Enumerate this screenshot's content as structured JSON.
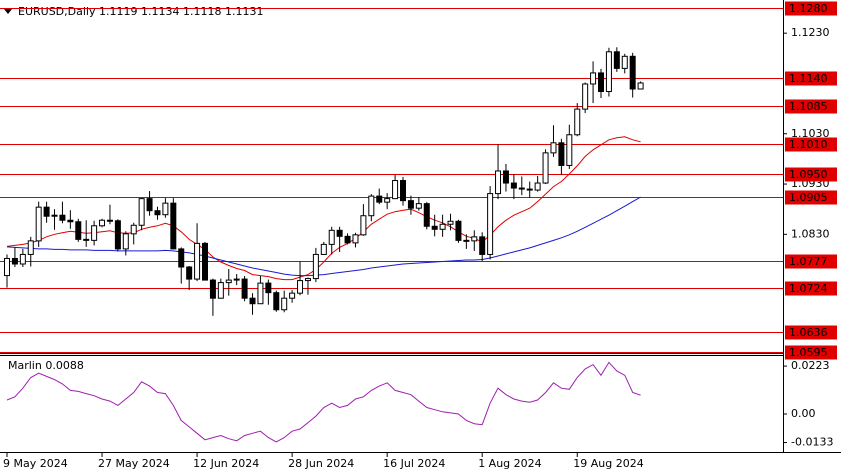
{
  "chart_data": [
    {
      "type": "candlestick",
      "title": "EURUSD,Daily",
      "categories": [
        "9 May 2024",
        null,
        null,
        null,
        null,
        null,
        null,
        null,
        null,
        null,
        null,
        null,
        "27 May 2024",
        null,
        null,
        null,
        null,
        null,
        null,
        null,
        null,
        null,
        null,
        null,
        "12 Jun 2024",
        null,
        null,
        null,
        null,
        null,
        null,
        null,
        null,
        null,
        null,
        null,
        "28 Jun 2024",
        null,
        null,
        null,
        null,
        null,
        null,
        null,
        null,
        null,
        null,
        null,
        "16 Jul 2024",
        null,
        null,
        null,
        null,
        null,
        null,
        null,
        null,
        null,
        null,
        null,
        "1 Aug 2024",
        null,
        null,
        null,
        null,
        null,
        null,
        null,
        null,
        null,
        null,
        null,
        "19 Aug 2024",
        null,
        null,
        null,
        null,
        null,
        null,
        null,
        null
      ],
      "open": [
        1.0748,
        1.0782,
        1.0771,
        1.079,
        1.0817,
        1.0884,
        1.0866,
        1.0868,
        1.0858,
        1.0855,
        1.082,
        1.0818,
        1.0847,
        1.0858,
        1.0857,
        1.0801,
        1.0831,
        1.0848,
        1.0901,
        1.0877,
        1.0869,
        1.0892,
        1.0801,
        1.0765,
        1.0741,
        1.0812,
        1.0739,
        1.0703,
        1.0734,
        1.0739,
        1.0741,
        1.0703,
        1.0692,
        1.0733,
        1.0714,
        1.068,
        1.0703,
        1.0713,
        1.0738,
        1.0742,
        1.079,
        1.081,
        1.0838,
        1.0826,
        1.0813,
        1.0829,
        1.0867,
        1.0906,
        1.0894,
        1.0901,
        1.0937,
        1.0897,
        1.0882,
        1.0891,
        1.0846,
        1.084,
        1.085,
        1.0856,
        1.0818,
        1.0817,
        1.0825,
        1.079,
        1.0911,
        1.0956,
        1.0932,
        1.0922,
        1.092,
        1.0918,
        1.0932,
        1.0992,
        1.1012,
        1.0967,
        1.1028,
        1.1079,
        1.1129,
        1.1151,
        1.1114,
        1.1193,
        1.116,
        1.1184,
        1.1119
      ],
      "high": [
        1.079,
        1.0804,
        1.0801,
        1.0825,
        1.0895,
        1.0895,
        1.088,
        1.0895,
        1.0878,
        1.0861,
        1.0858,
        1.0857,
        1.0861,
        1.0889,
        1.086,
        1.0836,
        1.0853,
        1.0902,
        1.0916,
        1.0885,
        1.0902,
        1.0902,
        1.0804,
        1.0767,
        1.0852,
        1.0815,
        1.0742,
        1.0742,
        1.0761,
        1.0751,
        1.0747,
        1.0713,
        1.0747,
        1.074,
        1.0718,
        1.0718,
        1.0719,
        1.0776,
        1.0744,
        1.0803,
        1.0815,
        1.0845,
        1.0845,
        1.0832,
        1.0833,
        1.089,
        1.091,
        1.0921,
        1.0912,
        1.0948,
        1.0944,
        1.0907,
        1.0904,
        1.0894,
        1.0869,
        1.0869,
        1.0871,
        1.0859,
        1.083,
        1.0838,
        1.0834,
        1.0926,
        1.1009,
        1.097,
        1.095,
        1.0945,
        1.0935,
        1.0946,
        1.0999,
        1.1047,
        1.102,
        1.1048,
        1.1091,
        1.1132,
        1.1174,
        1.1159,
        1.1201,
        1.1202,
        1.1189,
        1.1191,
        1.1134
      ],
      "low": [
        1.0724,
        1.0765,
        1.0765,
        1.0766,
        1.0805,
        1.0853,
        1.0839,
        1.0852,
        1.0841,
        1.0815,
        1.0805,
        1.0808,
        1.0844,
        1.085,
        1.0796,
        1.0788,
        1.081,
        1.0838,
        1.0867,
        1.0859,
        1.0863,
        1.0801,
        1.0732,
        1.0719,
        1.0737,
        1.0739,
        1.0668,
        1.0702,
        1.0708,
        1.0729,
        1.0697,
        1.067,
        1.0692,
        1.069,
        1.0676,
        1.0675,
        1.0694,
        1.0709,
        1.071,
        1.0735,
        1.0789,
        1.079,
        1.0795,
        1.081,
        1.0804,
        1.0827,
        1.0856,
        1.089,
        1.088,
        1.09,
        1.0887,
        1.0869,
        1.0877,
        1.084,
        1.0826,
        1.0825,
        1.0838,
        1.0813,
        1.0801,
        1.0797,
        1.0777,
        1.078,
        1.09,
        1.0915,
        1.09,
        1.0908,
        1.0903,
        1.0915,
        1.093,
        1.0984,
        1.0948,
        1.096,
        1.1025,
        1.1071,
        1.1091,
        1.1101,
        1.1104,
        1.1153,
        1.115,
        1.1102,
        1.1118
      ],
      "close": [
        1.0782,
        1.0771,
        1.079,
        1.0817,
        1.0884,
        1.0866,
        1.0868,
        1.0858,
        1.0855,
        1.082,
        1.0818,
        1.0847,
        1.0858,
        1.0857,
        1.0801,
        1.0831,
        1.0848,
        1.0901,
        1.0877,
        1.0869,
        1.0892,
        1.0801,
        1.0765,
        1.0741,
        1.0812,
        1.0739,
        1.0703,
        1.0734,
        1.0739,
        1.0741,
        1.0703,
        1.0692,
        1.0733,
        1.0714,
        1.068,
        1.0703,
        1.0713,
        1.0738,
        1.0742,
        1.079,
        1.081,
        1.0838,
        1.0826,
        1.0813,
        1.0829,
        1.0867,
        1.0906,
        1.0894,
        1.0901,
        1.0937,
        1.0897,
        1.0882,
        1.0891,
        1.0846,
        1.084,
        1.085,
        1.0856,
        1.0818,
        1.0817,
        1.0825,
        1.079,
        1.0911,
        1.0956,
        1.0932,
        1.0922,
        1.092,
        1.0918,
        1.0932,
        1.0992,
        1.1012,
        1.0967,
        1.1028,
        1.1079,
        1.1129,
        1.1151,
        1.1114,
        1.1193,
        1.116,
        1.1184,
        1.1119,
        1.1131
      ],
      "lines": [
        {
          "color": "#e00000",
          "values": [
            1.0806,
            1.0808,
            1.081,
            1.0813,
            1.0818,
            1.0825,
            1.083,
            1.0833,
            1.0836,
            1.0834,
            1.0832,
            1.0833,
            1.0835,
            1.0837,
            1.0833,
            1.0832,
            1.0833,
            1.084,
            1.0844,
            1.0847,
            1.0852,
            1.0847,
            1.0835,
            1.082,
            1.081,
            1.08,
            1.0785,
            1.0775,
            1.0768,
            1.0762,
            1.0758,
            1.075,
            1.0748,
            1.0746,
            1.0742,
            1.074,
            1.074,
            1.0745,
            1.075,
            1.076,
            1.0775,
            1.0792,
            1.0804,
            1.0812,
            1.0822,
            1.0835,
            1.085,
            1.086,
            1.087,
            1.0875,
            1.0878,
            1.088,
            1.0873,
            1.0865,
            1.0858,
            1.0853,
            1.0845,
            1.0835,
            1.0826,
            1.0822,
            1.0815,
            1.0828,
            1.0845,
            1.0858,
            1.0868,
            1.0875,
            1.0882,
            1.0895,
            1.091,
            1.0925,
            1.0935,
            1.095,
            1.0966,
            1.0985,
            1.0998,
            1.1008,
            1.1018,
            1.1022,
            1.1024,
            1.1018,
            1.1014
          ]
        },
        {
          "color": "#1a1ad0",
          "values": [
            1.0805,
            1.0804,
            1.0803,
            1.0802,
            1.0801,
            1.0801,
            1.08,
            1.08,
            1.0799,
            1.0799,
            1.0799,
            1.0798,
            1.0798,
            1.0798,
            1.0797,
            1.0797,
            1.0797,
            1.0797,
            1.0797,
            1.0797,
            1.0798,
            1.0797,
            1.0795,
            1.0793,
            1.079,
            1.0787,
            1.0783,
            1.0779,
            1.0775,
            1.0771,
            1.0767,
            1.0763,
            1.076,
            1.0757,
            1.0754,
            1.0751,
            1.0749,
            1.0748,
            1.0748,
            1.0749,
            1.075,
            1.0752,
            1.0754,
            1.0756,
            1.0758,
            1.076,
            1.0763,
            1.0765,
            1.0767,
            1.0769,
            1.0771,
            1.0772,
            1.0773,
            1.0774,
            1.0775,
            1.0776,
            1.0777,
            1.0778,
            1.0779,
            1.0779,
            1.078,
            1.0783,
            1.0787,
            1.0791,
            1.0795,
            1.0799,
            1.0803,
            1.0808,
            1.0813,
            1.0818,
            1.0823,
            1.0829,
            1.0836,
            1.0844,
            1.0852,
            1.086,
            1.0868,
            1.0877,
            1.0886,
            1.0895,
            1.0904
          ]
        }
      ],
      "levels": [
        {
          "value": 1.128,
          "label": "1.1280"
        },
        {
          "value": 1.114,
          "label": "1.1140"
        },
        {
          "value": 1.1085,
          "label": "1.1085"
        },
        {
          "value": 1.101,
          "label": "1.1010"
        },
        {
          "value": 1.095,
          "label": "1.0950"
        },
        {
          "value": 1.0905,
          "label": "1.0905"
        },
        {
          "value": 1.0777,
          "label": "1.0777"
        },
        {
          "value": 1.0724,
          "label": "1.0724"
        },
        {
          "value": 1.0636,
          "label": "1.0636"
        },
        {
          "value": 1.0595,
          "label": "1.0595"
        }
      ],
      "level_color": "#e00000",
      "ylim": [
        1.0594,
        1.1296
      ],
      "yticks": [
        {
          "value": 1.123,
          "label": "1.1230"
        },
        {
          "value": 1.103,
          "label": "1.1030"
        },
        {
          "value": 1.093,
          "label": "1.0930"
        },
        {
          "value": 1.083,
          "label": "1.0830"
        }
      ]
    },
    {
      "type": "line",
      "title": "Marlin",
      "color": "#a020b0",
      "values": [
        0.0065,
        0.008,
        0.012,
        0.017,
        0.019,
        0.0175,
        0.016,
        0.014,
        0.011,
        0.0105,
        0.0095,
        0.0085,
        0.007,
        0.006,
        0.004,
        0.007,
        0.01,
        0.015,
        0.013,
        0.01,
        0.0095,
        0.004,
        -0.003,
        -0.006,
        -0.009,
        -0.012,
        -0.011,
        -0.01,
        -0.0115,
        -0.0125,
        -0.01,
        -0.009,
        -0.008,
        -0.011,
        -0.013,
        -0.011,
        -0.008,
        -0.007,
        -0.004,
        -0.001,
        0.003,
        0.005,
        0.003,
        0.004,
        0.007,
        0.008,
        0.011,
        0.013,
        0.0145,
        0.011,
        0.01,
        0.009,
        0.006,
        0.003,
        0.002,
        0.001,
        0.0005,
        0.0,
        -0.003,
        -0.0045,
        -0.005,
        0.005,
        0.012,
        0.009,
        0.007,
        0.006,
        0.0055,
        0.0065,
        0.01,
        0.0145,
        0.012,
        0.0115,
        0.017,
        0.021,
        0.023,
        0.018,
        0.024,
        0.02,
        0.018,
        0.01,
        0.0088
      ],
      "ylim": [
        -0.0177,
        0.027
      ],
      "yticks": [
        0.0223,
        {
          "value": 0,
          "label": "0.00"
        },
        -0.0133
      ]
    }
  ]
}
